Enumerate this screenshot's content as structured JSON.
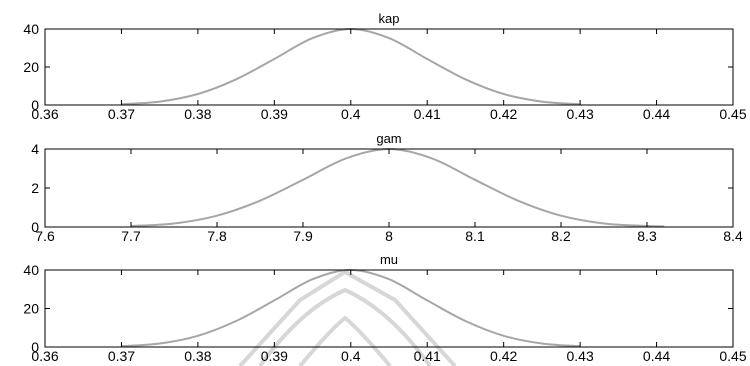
{
  "chart_data": [
    {
      "type": "line",
      "title": "kap",
      "xlabel": "",
      "ylabel": "",
      "xlim": [
        0.36,
        0.45
      ],
      "ylim": [
        0,
        40
      ],
      "xticks": [
        0.36,
        0.37,
        0.38,
        0.39,
        0.4,
        0.41,
        0.42,
        0.43,
        0.44,
        0.45
      ],
      "xtick_labels": [
        "0.36",
        "0.37",
        "0.38",
        "0.39",
        "0.4",
        "0.41",
        "0.42",
        "0.43",
        "0.44",
        "0.45"
      ],
      "yticks": [
        0,
        20,
        40
      ],
      "ytick_labels": [
        "0",
        "20",
        "40"
      ],
      "grid": false,
      "line_color": "#a6a6a6",
      "series": [
        {
          "x": [
            0.37,
            0.375,
            0.38,
            0.385,
            0.39,
            0.395,
            0.4,
            0.405,
            0.41,
            0.415,
            0.42,
            0.425,
            0.43
          ],
          "y": [
            0.4,
            1.8,
            5.8,
            13.5,
            24.2,
            35.2,
            40,
            35.2,
            24.2,
            13.5,
            5.8,
            1.8,
            0.4
          ]
        }
      ]
    },
    {
      "type": "line",
      "title": "gam",
      "xlabel": "",
      "ylabel": "",
      "xlim": [
        7.6,
        8.4
      ],
      "ylim": [
        0,
        4
      ],
      "xticks": [
        7.6,
        7.7,
        7.8,
        7.9,
        8.0,
        8.1,
        8.2,
        8.3,
        8.4
      ],
      "xtick_labels": [
        "7.6",
        "7.7",
        "7.8",
        "7.9",
        "8",
        "8.1",
        "8.2",
        "8.3",
        "8.4"
      ],
      "yticks": [
        0,
        2,
        4
      ],
      "ytick_labels": [
        "0",
        "2",
        "4"
      ],
      "grid": false,
      "line_color": "#a6a6a6",
      "series": [
        {
          "x": [
            7.7,
            7.75,
            7.8,
            7.85,
            7.9,
            7.95,
            8.0,
            8.05,
            8.1,
            8.15,
            8.2,
            8.25,
            8.3,
            8.32
          ],
          "y": [
            0.05,
            0.18,
            0.58,
            1.35,
            2.42,
            3.52,
            4.0,
            3.52,
            2.42,
            1.35,
            0.58,
            0.18,
            0.05,
            0.03
          ]
        }
      ]
    },
    {
      "type": "line",
      "title": "mu",
      "xlabel": "",
      "ylabel": "",
      "xlim": [
        0.36,
        0.45
      ],
      "ylim": [
        0,
        40
      ],
      "xticks": [
        0.36,
        0.37,
        0.38,
        0.39,
        0.4,
        0.41,
        0.42,
        0.43,
        0.44,
        0.45
      ],
      "xtick_labels": [
        "0.36",
        "0.37",
        "0.38",
        "0.39",
        "0.4",
        "0.41",
        "0.42",
        "0.43",
        "0.44",
        "0.45"
      ],
      "yticks": [
        0,
        20,
        40
      ],
      "ytick_labels": [
        "0",
        "20",
        "40"
      ],
      "grid": false,
      "line_color": "#a6a6a6",
      "series": [
        {
          "x": [
            0.37,
            0.375,
            0.38,
            0.385,
            0.39,
            0.395,
            0.4,
            0.405,
            0.41,
            0.415,
            0.42,
            0.425,
            0.43
          ],
          "y": [
            0.4,
            1.8,
            5.8,
            13.5,
            24.2,
            35.2,
            40,
            35.2,
            24.2,
            13.5,
            5.8,
            1.8,
            0.4
          ]
        }
      ]
    }
  ]
}
